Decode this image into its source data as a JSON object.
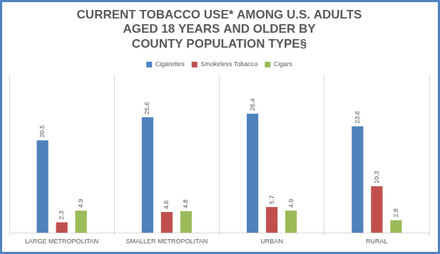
{
  "chart_data": {
    "type": "bar",
    "title": [
      "CURRENT TOBACCO USE* AMONG U.S. ADULTS",
      "AGED 18 YEARS AND OLDER BY",
      "COUNTY POPULATION TYPE§"
    ],
    "categories": [
      "LARGE METROPOLITAN",
      "SMALLER METROPOLITAN",
      "URBAN",
      "RURAL"
    ],
    "series": [
      {
        "name": "Cigarettes",
        "color": "#4f81bd",
        "values": [
          20.5,
          25.6,
          26.4,
          23.6
        ]
      },
      {
        "name": "Smokeless Tobacco",
        "color": "#c0504d",
        "values": [
          2.3,
          4.6,
          5.7,
          10.3
        ]
      },
      {
        "name": "Cigars",
        "color": "#9bbb59",
        "values": [
          4.9,
          4.8,
          4.9,
          2.8
        ]
      }
    ],
    "ylim": [
      0,
      35
    ],
    "legend": "top",
    "data_labels": true,
    "tick_labels": "x"
  }
}
